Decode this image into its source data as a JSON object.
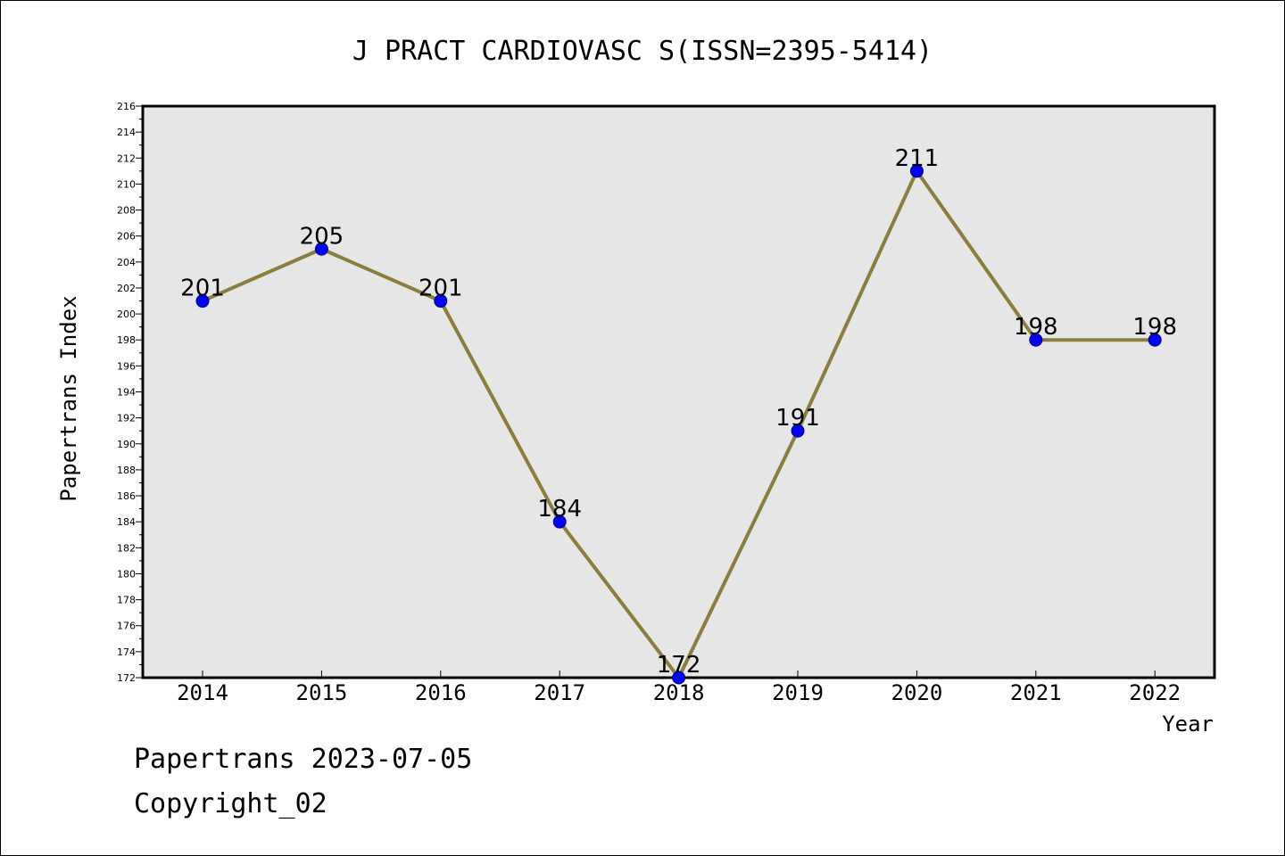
{
  "chart_data": {
    "type": "line",
    "title": "J PRACT CARDIOVASC S(ISSN=2395-5414)",
    "xlabel": "Year",
    "ylabel": "Papertrans Index",
    "categories": [
      "2014",
      "2015",
      "2016",
      "2017",
      "2018",
      "2019",
      "2020",
      "2021",
      "2022"
    ],
    "values": [
      201,
      205,
      201,
      184,
      172,
      191,
      211,
      198,
      198
    ],
    "data_labels": [
      "201",
      "205",
      "201",
      "184",
      "172",
      "191",
      "211",
      "198",
      "198"
    ],
    "ylim": [
      172,
      216
    ],
    "yticks": [
      172,
      174,
      176,
      178,
      180,
      182,
      184,
      186,
      188,
      190,
      192,
      194,
      196,
      198,
      200,
      202,
      204,
      206,
      208,
      210,
      212,
      214,
      216
    ],
    "grid": false,
    "line_color": "#8b7d3a",
    "marker_color": "#0000ff",
    "plot_background": "#e6e6e6"
  },
  "footer": {
    "line1": "Papertrans 2023-07-05",
    "line2": "Copyright_02"
  }
}
